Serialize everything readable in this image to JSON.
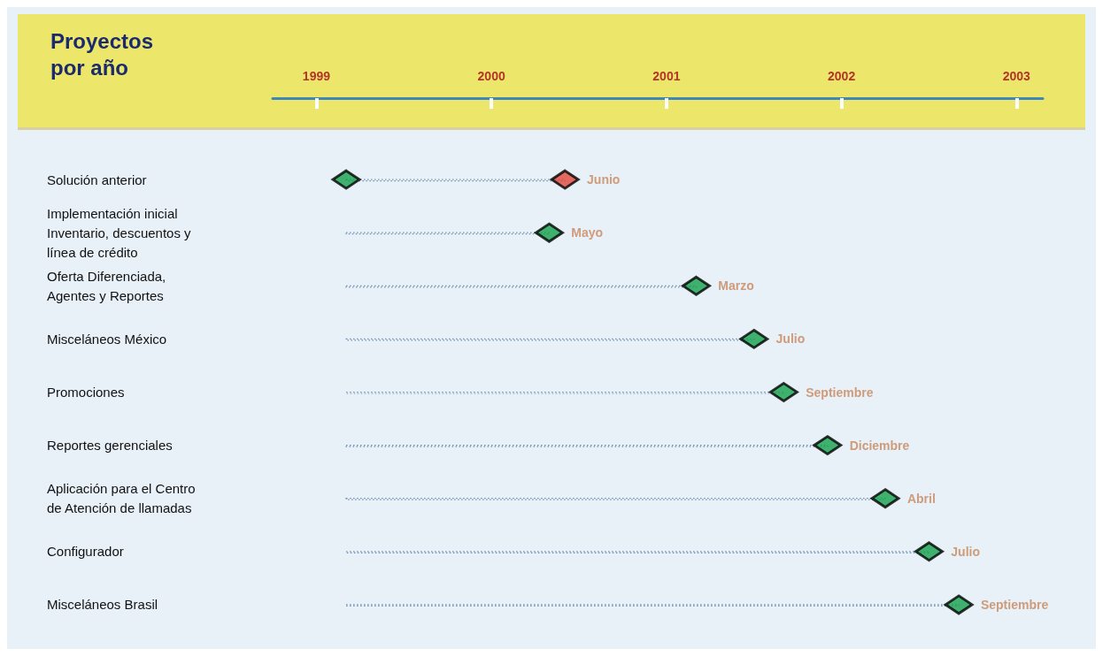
{
  "chart_data": {
    "type": "scatter",
    "title": "Proyectos por año",
    "orientation": "horizontal",
    "categories": [
      "Solución anterior",
      "Implementación inicial\nInventario, descuentos y\nlínea de crédito",
      "Oferta Diferenciada,\nAgentes y Reportes",
      "Misceláneos México",
      "Promociones",
      "Reportes gerenciales",
      "Aplicación para el Centro\nde Atención de llamadas",
      "Configurador",
      "Misceláneos Brasil"
    ],
    "marker": "diamond",
    "grid": false,
    "series": [
      {
        "type": "bar",
        "color": "#6f8fb5",
        "line_style": "dotted",
        "base": [
          1999.17,
          1999.17,
          1999.17,
          1999.17,
          1999.17,
          1999.17,
          1999.17,
          1999.17,
          1999.17
        ],
        "values": [
          1.25,
          1.16,
          2.0,
          2.33,
          2.5,
          2.75,
          3.08,
          3.33,
          3.5
        ]
      },
      {
        "color": "#14a04a",
        "values": [
          1999.17,
          null,
          null,
          null,
          null,
          null,
          null,
          null,
          null
        ]
      },
      {
        "colors": [
          "#e0473a",
          "#14a04a",
          "#14a04a",
          "#14a04a",
          "#14a04a",
          "#14a04a",
          "#14a04a",
          "#14a04a",
          "#14a04a"
        ],
        "values": [
          2000.42,
          2000.33,
          2001.17,
          2001.5,
          2001.67,
          2001.92,
          2002.25,
          2002.5,
          2002.67
        ],
        "value_labels": [
          "Junio",
          "Mayo",
          "Marzo",
          "Julio",
          "Septiembre",
          "Diciembre",
          "Abril",
          "Julio",
          "Septiembre"
        ]
      }
    ],
    "xlim": [
      1998.75,
      2003.15
    ],
    "xticks": [
      1999,
      2000,
      2001,
      2002,
      2003
    ]
  }
}
